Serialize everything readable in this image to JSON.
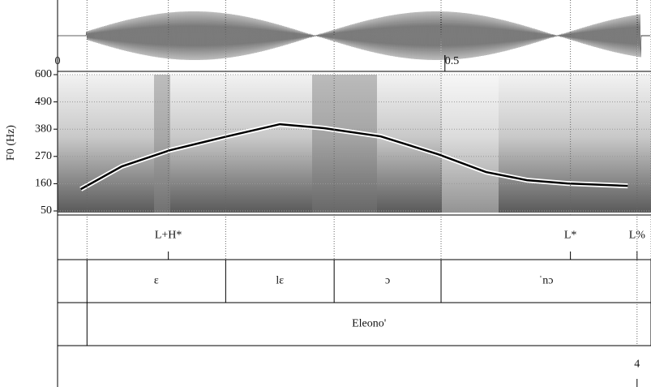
{
  "chart_data": {
    "type": "line",
    "ylabel": "F0 (Hz)",
    "x": [
      0.03,
      0.083,
      0.145,
      0.219,
      0.287,
      0.344,
      0.417,
      0.491,
      0.553,
      0.606,
      0.658,
      0.736
    ],
    "series": [
      {
        "color": "#000000",
        "values": [
          138,
          230,
          295,
          351,
          400,
          384,
          351,
          279,
          207,
          174,
          161,
          151
        ]
      }
    ],
    "xlim": [
      0,
      0.766
    ],
    "xticks": [
      0,
      0.5
    ],
    "ylim": [
      50,
      600
    ],
    "yticks": [
      50,
      160,
      270,
      380,
      490,
      600
    ],
    "tiers": [
      {
        "points": [
          0.143,
          0.662,
          0.748
        ],
        "labels": [
          "L+H*",
          "L*",
          "L%"
        ]
      },
      {
        "boundaries": [
          0.038,
          0.217,
          0.357,
          0.495,
          0.766
        ],
        "labels": [
          "ɛ",
          "lɛ",
          "ɔ",
          "ˈnɔ"
        ]
      },
      {
        "boundaries": [
          0.038,
          0.766
        ],
        "labels": [
          "Eleono'"
        ]
      },
      {
        "points": [
          0.748
        ],
        "labels": [
          "4"
        ]
      }
    ]
  }
}
